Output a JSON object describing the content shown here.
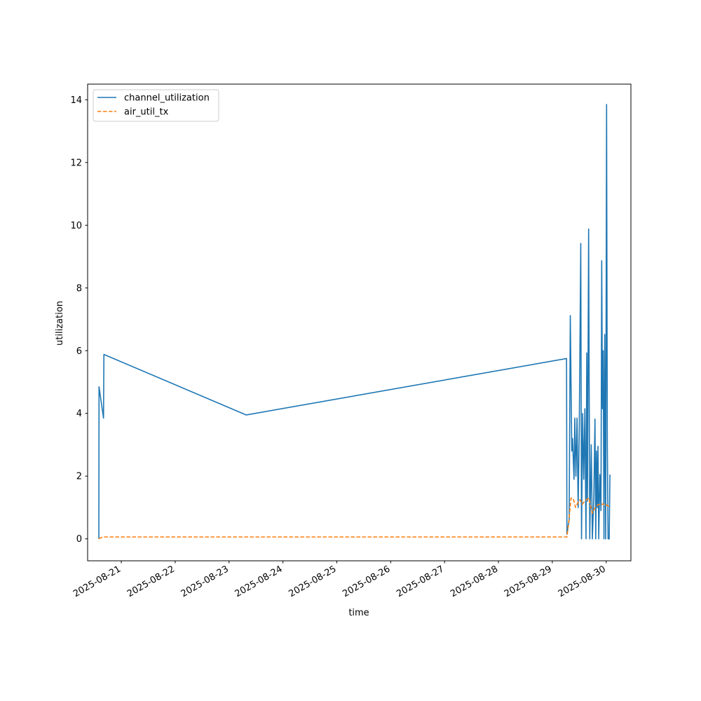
{
  "chart_data": {
    "type": "line",
    "title": "",
    "xlabel": "time",
    "ylabel": "utilization",
    "x_type": "datetime",
    "xlim": [
      "2025-08-20T09:00",
      "2025-08-30T11:00"
    ],
    "ylim": [
      -0.7,
      14.5
    ],
    "x_ticks": [
      "2025-08-21",
      "2025-08-22",
      "2025-08-23",
      "2025-08-24",
      "2025-08-25",
      "2025-08-26",
      "2025-08-27",
      "2025-08-28",
      "2025-08-29",
      "2025-08-30"
    ],
    "y_ticks": [
      0,
      2,
      4,
      6,
      8,
      10,
      12,
      14
    ],
    "grid": false,
    "legend": {
      "position": "top-left"
    },
    "series": [
      {
        "name": "channel_utilization",
        "color": "#1f77b4",
        "style": "solid",
        "points": [
          [
            "2025-08-20T14:00",
            0
          ],
          [
            "2025-08-20T14:05",
            4.85
          ],
          [
            "2025-08-20T16:05",
            3.85
          ],
          [
            "2025-08-20T16:15",
            5.88
          ],
          [
            "2025-08-23T07:40",
            3.95
          ],
          [
            "2025-08-29T06:20",
            5.75
          ],
          [
            "2025-08-29T06:30",
            0.15
          ],
          [
            "2025-08-29T07:30",
            0.6
          ],
          [
            "2025-08-29T08:00",
            7.12
          ],
          [
            "2025-08-29T08:40",
            2.8
          ],
          [
            "2025-08-29T09:00",
            3.2
          ],
          [
            "2025-08-29T09:40",
            1.9
          ],
          [
            "2025-08-29T10:00",
            3.85
          ],
          [
            "2025-08-29T10:30",
            2.0
          ],
          [
            "2025-08-29T11:00",
            3.85
          ],
          [
            "2025-08-29T11:30",
            1.0
          ],
          [
            "2025-08-29T12:00",
            3.5
          ],
          [
            "2025-08-29T12:40",
            9.42
          ],
          [
            "2025-08-29T13:00",
            0
          ],
          [
            "2025-08-29T13:30",
            4.0
          ],
          [
            "2025-08-29T14:00",
            1.9
          ],
          [
            "2025-08-29T14:30",
            4.15
          ],
          [
            "2025-08-29T15:00",
            0
          ],
          [
            "2025-08-29T15:20",
            5.93
          ],
          [
            "2025-08-29T15:40",
            1.2
          ],
          [
            "2025-08-29T16:10",
            9.88
          ],
          [
            "2025-08-29T16:40",
            0
          ],
          [
            "2025-08-29T17:20",
            3.0
          ],
          [
            "2025-08-29T17:50",
            0
          ],
          [
            "2025-08-29T18:30",
            1.4
          ],
          [
            "2025-08-29T19:00",
            3.82
          ],
          [
            "2025-08-29T19:20",
            0
          ],
          [
            "2025-08-29T19:40",
            2.8
          ],
          [
            "2025-08-29T20:00",
            1.0
          ],
          [
            "2025-08-29T20:20",
            2.95
          ],
          [
            "2025-08-29T20:40",
            0
          ],
          [
            "2025-08-29T21:10",
            2.05
          ],
          [
            "2025-08-29T21:40",
            0.9
          ],
          [
            "2025-08-29T22:00",
            8.87
          ],
          [
            "2025-08-29T22:20",
            4.15
          ],
          [
            "2025-08-29T22:40",
            6.0
          ],
          [
            "2025-08-29T23:00",
            0
          ],
          [
            "2025-08-29T23:20",
            6.52
          ],
          [
            "2025-08-29T23:45",
            0
          ],
          [
            "2025-08-30T00:10",
            13.85
          ],
          [
            "2025-08-30T00:30",
            3.0
          ],
          [
            "2025-08-30T00:50",
            0
          ],
          [
            "2025-08-30T01:20",
            0
          ],
          [
            "2025-08-30T01:40",
            2.05
          ]
        ]
      },
      {
        "name": "air_util_tx",
        "color": "#ff7f0e",
        "style": "dashed",
        "points": [
          [
            "2025-08-20T14:00",
            0.0
          ],
          [
            "2025-08-20T15:00",
            0.04
          ],
          [
            "2025-08-20T16:15",
            0.06
          ],
          [
            "2025-08-23T07:40",
            0.06
          ],
          [
            "2025-08-29T06:20",
            0.06
          ],
          [
            "2025-08-29T06:30",
            0.06
          ],
          [
            "2025-08-29T07:20",
            0.55
          ],
          [
            "2025-08-29T08:20",
            1.3
          ],
          [
            "2025-08-29T09:20",
            1.28
          ],
          [
            "2025-08-29T10:20",
            1.0
          ],
          [
            "2025-08-29T11:20",
            1.15
          ],
          [
            "2025-08-29T12:20",
            1.25
          ],
          [
            "2025-08-29T13:20",
            1.1
          ],
          [
            "2025-08-29T14:20",
            1.2
          ],
          [
            "2025-08-29T15:20",
            1.25
          ],
          [
            "2025-08-29T16:20",
            1.3
          ],
          [
            "2025-08-29T17:00",
            1.05
          ],
          [
            "2025-08-29T17:50",
            0.82
          ],
          [
            "2025-08-29T18:40",
            0.95
          ],
          [
            "2025-08-29T19:40",
            1.05
          ],
          [
            "2025-08-29T20:40",
            1.1
          ],
          [
            "2025-08-29T21:40",
            1.08
          ],
          [
            "2025-08-29T22:40",
            1.12
          ],
          [
            "2025-08-29T23:40",
            1.05
          ],
          [
            "2025-08-30T00:30",
            1.08
          ],
          [
            "2025-08-30T01:40",
            0.98
          ]
        ]
      }
    ]
  }
}
